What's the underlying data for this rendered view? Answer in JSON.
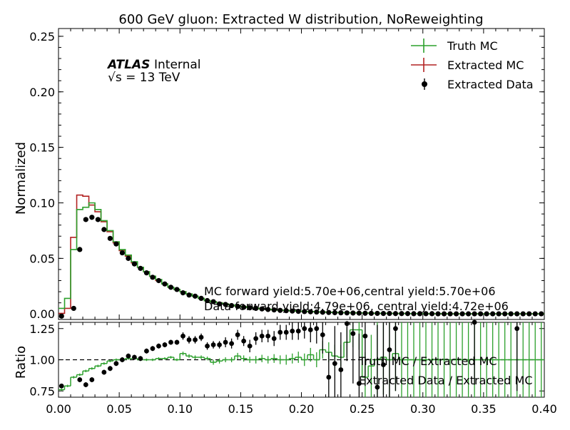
{
  "chart_data": {
    "type": "line",
    "title": "600 GeV gluon: Extracted W distribution, NoReweighting",
    "atlas_label": "ATLAS",
    "atlas_suffix": "Internal",
    "energy_label": "√s = 13 TeV",
    "xlabel": "",
    "ylabel_top": "Normalized",
    "ylabel_bottom": "Ratio",
    "xlim": [
      0.0,
      0.4
    ],
    "ylim_top": [
      -0.005,
      0.257
    ],
    "ylim_bottom": [
      0.7,
      1.3
    ],
    "x_ticks": [
      "0.00",
      "0.05",
      "0.10",
      "0.15",
      "0.20",
      "0.25",
      "0.30",
      "0.35",
      "0.40"
    ],
    "y_ticks_top": [
      "0.00",
      "0.05",
      "0.10",
      "0.15",
      "0.20",
      "0.25"
    ],
    "y_ticks_bottom": [
      "0.75",
      "1.00",
      "1.25"
    ],
    "legend_placement": "top-right",
    "legend": [
      "Truth MC",
      "Extracted MC",
      "Extracted Data"
    ],
    "colors": {
      "truth": "#2ca02c",
      "extracted_mc": "#b22222",
      "data": "#000000"
    },
    "annotations": [
      "MC forward yield:5.70e+06,central yield:5.70e+06",
      "Data forward yield:4.79e+06, central yield:4.72e+06"
    ],
    "ratio_labels": [
      "Truth MC / Extracted MC",
      "Extracted Data / Extracted MC"
    ],
    "bin_edges": [
      0.0,
      0.005,
      0.01,
      0.015,
      0.02,
      0.025,
      0.03,
      0.035,
      0.04,
      0.045,
      0.05,
      0.055,
      0.06,
      0.065,
      0.07,
      0.075,
      0.08,
      0.085,
      0.09,
      0.095,
      0.1,
      0.105,
      0.11,
      0.115,
      0.12,
      0.125,
      0.13,
      0.135,
      0.14,
      0.145,
      0.15,
      0.155,
      0.16,
      0.165,
      0.17,
      0.175,
      0.18,
      0.185,
      0.19,
      0.195,
      0.2,
      0.205,
      0.21,
      0.215,
      0.22,
      0.225,
      0.23,
      0.235,
      0.24,
      0.245,
      0.25,
      0.255,
      0.26,
      0.265,
      0.27,
      0.275,
      0.28,
      0.285,
      0.29,
      0.295,
      0.3,
      0.305,
      0.31,
      0.315,
      0.32,
      0.325,
      0.33,
      0.335,
      0.34,
      0.345,
      0.35,
      0.355,
      0.36,
      0.365,
      0.37,
      0.375,
      0.38,
      0.385,
      0.39,
      0.395,
      0.4
    ],
    "series": [
      {
        "name": "Truth MC",
        "values": [
          0.005,
          0.014,
          0.058,
          0.094,
          0.096,
          0.1,
          0.094,
          0.084,
          0.075,
          0.065,
          0.058,
          0.053,
          0.047,
          0.042,
          0.038,
          0.034,
          0.031,
          0.027,
          0.024,
          0.022,
          0.02,
          0.018,
          0.016,
          0.014,
          0.012,
          0.011,
          0.01,
          0.009,
          0.008,
          0.0072,
          0.0065,
          0.0058,
          0.0052,
          0.0047,
          0.0042,
          0.0038,
          0.0034,
          0.0031,
          0.0028,
          0.0025,
          0.0023,
          0.0021,
          0.0019,
          0.0017,
          0.0015,
          0.0013,
          0.0012,
          0.0011,
          0.001,
          0.0009,
          0.0008,
          0.0007,
          0.0006,
          0.0005,
          0.0005,
          0.0004,
          0.0004,
          0.0003,
          0.0003,
          0.0003,
          0.0002,
          0.0002,
          0.0002,
          0.0002,
          0.0001,
          0.0001,
          0.0001,
          0.0001,
          0.0001,
          0.0001,
          0.0001,
          0.0001,
          0.0001,
          0.0001,
          0.0001,
          0.0001,
          0.0001,
          0.0001,
          0.0001,
          0.0001
        ]
      },
      {
        "name": "Extracted MC",
        "values": [
          0.0005,
          0.005,
          0.069,
          0.107,
          0.106,
          0.098,
          0.092,
          0.083,
          0.074,
          0.064,
          0.057,
          0.052,
          0.046,
          0.042,
          0.038,
          0.034,
          0.03,
          0.027,
          0.024,
          0.022,
          0.02,
          0.018,
          0.016,
          0.014,
          0.012,
          0.011,
          0.01,
          0.009,
          0.008,
          0.0072,
          0.0065,
          0.0058,
          0.0052,
          0.0047,
          0.0042,
          0.0038,
          0.0034,
          0.0031,
          0.0028,
          0.0025,
          0.0023,
          0.0021,
          0.0019,
          0.0017,
          0.0015,
          0.0013,
          0.0012,
          0.0011,
          0.001,
          0.0009,
          0.0008,
          0.0007,
          0.0006,
          0.0005,
          0.0005,
          0.0004,
          0.0004,
          0.0003,
          0.0003,
          0.0003,
          0.0002,
          0.0002,
          0.0002,
          0.0002,
          0.0001,
          0.0001,
          0.0001,
          0.0001,
          0.0001,
          0.0001,
          0.0001,
          0.0001,
          0.0001,
          0.0001,
          0.0001,
          0.0001,
          0.0001,
          0.0001,
          0.0001,
          0.0001
        ]
      }
    ],
    "data_points": {
      "name": "Extracted Data",
      "x": [
        0.0025,
        0.0125,
        0.0175,
        0.0225,
        0.0275,
        0.0325,
        0.0375,
        0.0425,
        0.0475,
        0.0525,
        0.0575,
        0.0625,
        0.0675,
        0.0725,
        0.0775,
        0.0825,
        0.0875,
        0.0925,
        0.0975,
        0.1025,
        0.1075,
        0.1125,
        0.1175,
        0.1225,
        0.1275,
        0.1325,
        0.1375,
        0.1425,
        0.1475,
        0.1525,
        0.1575,
        0.1625,
        0.1675,
        0.1725,
        0.1775,
        0.1825,
        0.1875,
        0.1925,
        0.1975,
        0.2025,
        0.2075,
        0.2125,
        0.2175,
        0.2225,
        0.2275,
        0.2325,
        0.2375,
        0.2425,
        0.2475,
        0.2525,
        0.2575,
        0.2625,
        0.2675,
        0.2725,
        0.2775,
        0.2825,
        0.2875,
        0.2925,
        0.2975,
        0.3025,
        0.3075,
        0.3125,
        0.3175,
        0.3225,
        0.3275,
        0.3325,
        0.3375,
        0.3425,
        0.3475,
        0.3525,
        0.3575,
        0.3625,
        0.3675,
        0.3725,
        0.3775,
        0.3825,
        0.3875,
        0.3925,
        0.3975
      ],
      "y": [
        -0.002,
        0.005,
        0.058,
        0.085,
        0.087,
        0.085,
        0.076,
        0.068,
        0.063,
        0.055,
        0.05,
        0.045,
        0.041,
        0.037,
        0.033,
        0.03,
        0.027,
        0.024,
        0.022,
        0.019,
        0.017,
        0.016,
        0.014,
        0.012,
        0.011,
        0.009,
        0.0085,
        0.0075,
        0.0067,
        0.006,
        0.0055,
        0.005,
        0.0045,
        0.004,
        0.0036,
        0.0032,
        0.0029,
        0.0026,
        0.0023,
        0.0021,
        0.0019,
        0.0017,
        0.0015,
        0.0013,
        0.0011,
        0.001,
        0.0009,
        0.0008,
        0.0007,
        0.0006,
        0.0005,
        0.0005,
        0.0004,
        0.0004,
        0.0003,
        0.0003,
        0.0003,
        0.0002,
        0.0002,
        0.0002,
        0.0002,
        0.0001,
        0.0001,
        0.0001,
        0.0001,
        0.0001,
        0.0001,
        0.0001,
        0.0001,
        0.0001,
        0.0001,
        0.0001,
        0.0001,
        0.0001,
        0.0001,
        0.0001,
        0.0001,
        0.0001,
        0.0001
      ]
    },
    "ratio_truth": {
      "values": [
        0.76,
        0.79,
        0.86,
        0.88,
        0.91,
        0.93,
        0.95,
        0.97,
        0.99,
        1.0,
        1.0,
        1.01,
        1.01,
        1.0,
        1.0,
        1.0,
        1.01,
        1.01,
        1.02,
        1.0,
        1.05,
        1.03,
        1.02,
        1.02,
        1.01,
        0.98,
        0.99,
        1.0,
        1.0,
        1.03,
        1.01,
        1.0,
        1.0,
        1.01,
        1.0,
        1.01,
        1.0,
        1.0,
        1.01,
        1.02,
        1.0,
        1.04,
        1.0,
        1.08,
        1.06,
        1.03,
        1.02,
        1.14,
        1.24,
        1.24,
        0.86,
        0.95,
        1.0,
        1.02,
        1.0,
        1.05,
        1.0,
        1.0,
        1.0,
        1.0,
        1.0,
        1.0,
        1.0,
        1.0,
        1.0,
        1.0,
        1.0,
        1.0,
        1.0,
        1.0,
        1.0,
        1.0,
        1.0,
        1.0,
        1.0,
        1.0,
        1.0,
        1.0,
        1.0,
        1.0
      ],
      "errors": [
        0.01,
        0.01,
        0.01,
        0.01,
        0.01,
        0.01,
        0.01,
        0.01,
        0.01,
        0.01,
        0.01,
        0.01,
        0.01,
        0.01,
        0.01,
        0.01,
        0.01,
        0.01,
        0.01,
        0.01,
        0.015,
        0.015,
        0.015,
        0.015,
        0.015,
        0.02,
        0.02,
        0.02,
        0.02,
        0.025,
        0.025,
        0.025,
        0.03,
        0.03,
        0.03,
        0.035,
        0.035,
        0.04,
        0.04,
        0.045,
        0.05,
        0.055,
        0.06,
        0.07,
        0.08,
        0.09,
        0.1,
        0.12,
        0.14,
        0.16,
        0.2,
        0.25,
        0.3,
        0.3,
        0.3,
        0.3,
        0.3,
        0.3,
        0.3,
        0.3,
        0.3,
        0.3,
        0.3,
        0.3,
        0.3,
        0.3,
        0.3,
        0.3,
        0.3,
        0.3,
        0.3,
        0.3,
        0.3,
        0.3,
        0.3,
        0.3,
        0.3,
        0.3,
        0.3,
        0.3
      ]
    },
    "ratio_data": {
      "x": [
        0.0025,
        0.0175,
        0.0225,
        0.0275,
        0.0375,
        0.0425,
        0.0475,
        0.0525,
        0.0575,
        0.0625,
        0.0675,
        0.0725,
        0.0775,
        0.0825,
        0.0875,
        0.0925,
        0.0975,
        0.1025,
        0.1075,
        0.1125,
        0.1175,
        0.1225,
        0.1275,
        0.1325,
        0.1375,
        0.1425,
        0.1475,
        0.1525,
        0.1575,
        0.1625,
        0.1675,
        0.1725,
        0.1775,
        0.1825,
        0.1875,
        0.1925,
        0.1975,
        0.2025,
        0.2075,
        0.2125,
        0.2175,
        0.2225,
        0.2275,
        0.2325,
        0.2375,
        0.2425,
        0.2475,
        0.2525,
        0.2625,
        0.2675,
        0.2725,
        0.2775,
        0.3425,
        0.3775
      ],
      "y": [
        0.79,
        0.84,
        0.8,
        0.84,
        0.9,
        0.93,
        0.97,
        1.0,
        1.03,
        1.02,
        1.01,
        1.07,
        1.09,
        1.11,
        1.12,
        1.14,
        1.14,
        1.19,
        1.16,
        1.16,
        1.18,
        1.11,
        1.12,
        1.12,
        1.14,
        1.13,
        1.2,
        1.15,
        1.11,
        1.17,
        1.19,
        1.19,
        1.17,
        1.22,
        1.22,
        1.23,
        1.23,
        1.25,
        1.24,
        1.25,
        1.2,
        0.86,
        0.97,
        0.92,
        1.29,
        1.21,
        0.81,
        1.19,
        0.78,
        0.96,
        1.08,
        1.25,
        1.3,
        1.25
      ],
      "errors": [
        0.01,
        0.02,
        0.02,
        0.02,
        0.02,
        0.02,
        0.02,
        0.02,
        0.02,
        0.02,
        0.02,
        0.02,
        0.02,
        0.02,
        0.02,
        0.02,
        0.02,
        0.03,
        0.03,
        0.03,
        0.03,
        0.03,
        0.03,
        0.03,
        0.04,
        0.04,
        0.04,
        0.04,
        0.05,
        0.05,
        0.05,
        0.05,
        0.06,
        0.06,
        0.06,
        0.07,
        0.07,
        0.08,
        0.1,
        0.12,
        0.15,
        0.2,
        0.3,
        0.3,
        0.3,
        0.4,
        0.4,
        0.4,
        0.5,
        0.5,
        0.5,
        0.5,
        0.5,
        0.5
      ]
    }
  }
}
